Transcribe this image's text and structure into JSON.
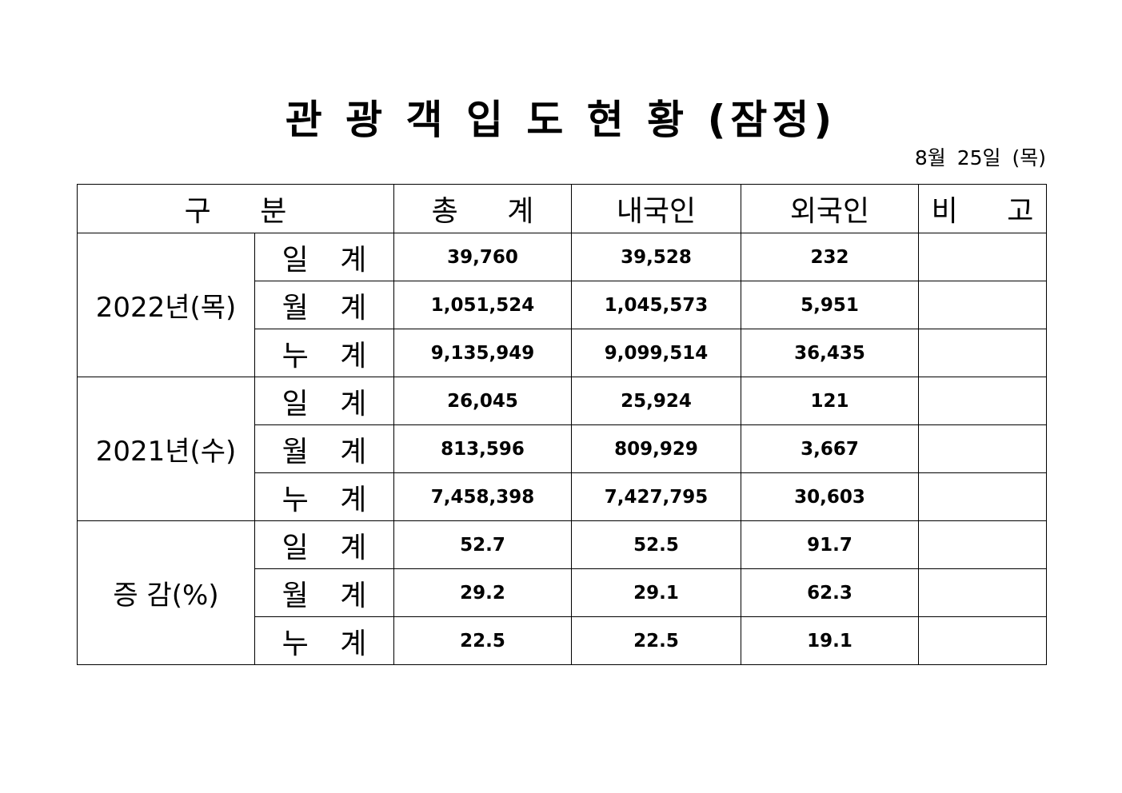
{
  "header": {
    "title": "관 광 객 입 도 현 황 (잠정)",
    "date": "8월 25일 (목)"
  },
  "table": {
    "columns": [
      "구 분",
      "총 계",
      "내국인",
      "외국인",
      "비 고"
    ],
    "groups": [
      {
        "label": "2022년(목)",
        "rows": [
          {
            "label": "일 계",
            "values": [
              "39,760",
              "39,528",
              "232"
            ]
          },
          {
            "label": "월 계",
            "values": [
              "1,051,524",
              "1,045,573",
              "5,951"
            ]
          },
          {
            "label": "누 계",
            "values": [
              "9,135,949",
              "9,099,514",
              "36,435"
            ]
          }
        ]
      },
      {
        "label": "2021년(수)",
        "rows": [
          {
            "label": "일 계",
            "values": [
              "26,045",
              "25,924",
              "121"
            ]
          },
          {
            "label": "월 계",
            "values": [
              "813,596",
              "809,929",
              "3,667"
            ]
          },
          {
            "label": "누 계",
            "values": [
              "7,458,398",
              "7,427,795",
              "30,603"
            ]
          }
        ]
      },
      {
        "label": "증 감(%)",
        "rows": [
          {
            "label": "일 계",
            "values": [
              "52.7",
              "52.5",
              "91.7"
            ]
          },
          {
            "label": "월 계",
            "values": [
              "29.2",
              "29.1",
              "62.3"
            ]
          },
          {
            "label": "누 계",
            "values": [
              "22.5",
              "22.5",
              "19.1"
            ]
          }
        ]
      }
    ]
  }
}
